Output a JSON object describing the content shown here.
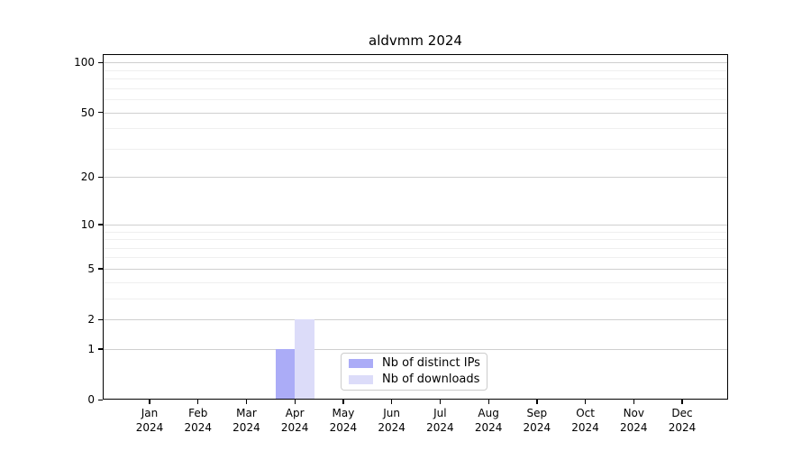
{
  "figure": {
    "background": "#ffffff"
  },
  "chart_data": {
    "type": "bar",
    "title": "aldvmm 2024",
    "x": {
      "categories": [
        "Jan",
        "Feb",
        "Mar",
        "Apr",
        "May",
        "Jun",
        "Jul",
        "Aug",
        "Sep",
        "Oct",
        "Nov",
        "Dec"
      ],
      "year": "2024"
    },
    "series": [
      {
        "name": "Nb of distinct IPs",
        "color": "#abacf7",
        "values": [
          0,
          0,
          0,
          1,
          0,
          0,
          0,
          0,
          0,
          0,
          0,
          0
        ]
      },
      {
        "name": "Nb of downloads",
        "color": "#dcdcf9",
        "values": [
          0,
          0,
          0,
          2,
          0,
          0,
          0,
          0,
          0,
          0,
          0,
          0
        ]
      }
    ],
    "y_axis": {
      "scale": "log1p",
      "ticks": [
        0,
        1,
        2,
        5,
        10,
        20,
        50,
        100
      ],
      "minor_gridlines": [
        3,
        4,
        6,
        7,
        8,
        9,
        30,
        40,
        60,
        70,
        80,
        90
      ],
      "max": 113
    },
    "grid": "both",
    "legend": {
      "position": "lower center inside plot"
    }
  },
  "colors": {
    "major_grid": "#cfcfcf",
    "minor_grid": "#efefef",
    "axis": "#000000",
    "legend_border": "#cccccc"
  }
}
